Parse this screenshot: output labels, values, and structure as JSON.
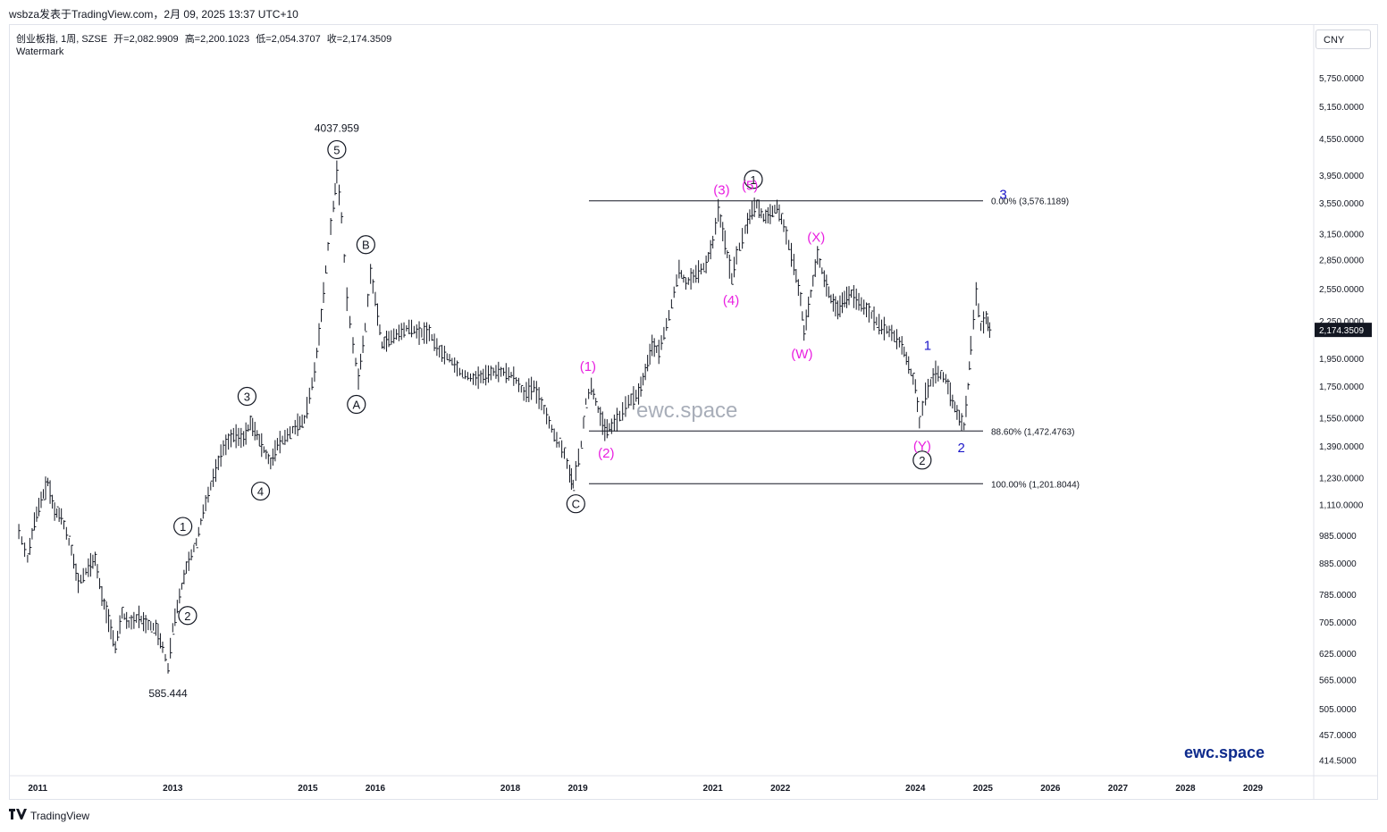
{
  "header": {
    "caption": "wsbza发表于TradingView.com，2月 09, 2025 13:37 UTC+10"
  },
  "legend": {
    "symbol": "创业板指, 1周, SZSE",
    "open": "开=2,082.9909",
    "high": "高=2,200.1023",
    "low": "低=2,054.3707",
    "close": "收=2,174.3509",
    "watermark": "Watermark"
  },
  "currency": "CNY",
  "footer": {
    "brand": "TradingView",
    "site": "ewc.space"
  },
  "center_watermark": "ewc.space",
  "colors": {
    "price_bar": "#131722",
    "magenta": "#e91ee0",
    "blue": "#1c17c9",
    "last_price_bg": "#131722",
    "site_text": "#0d2a8c"
  },
  "chart_data": {
    "type": "line",
    "title": "",
    "scale": "log",
    "ylim": [
      390,
      6350
    ],
    "xlim": [
      2010.6,
      2029.9
    ],
    "last_price": "2,174.3509",
    "y_ticks": [
      "5,750.0000",
      "5,150.0000",
      "4,550.0000",
      "3,950.0000",
      "3,550.0000",
      "3,150.0000",
      "2,850.0000",
      "2,550.0000",
      "2,250.0000",
      "1,950.0000",
      "1,750.0000",
      "1,550.0000",
      "1,390.0000",
      "1,230.0000",
      "1,110.0000",
      "985.0000",
      "885.0000",
      "785.0000",
      "705.0000",
      "625.0000",
      "565.0000",
      "505.0000",
      "457.0000",
      "414.5000"
    ],
    "x_ticks": [
      {
        "label": "2011",
        "x": 2011.0
      },
      {
        "label": "2013",
        "x": 2013.0
      },
      {
        "label": "2015",
        "x": 2015.0
      },
      {
        "label": "2016",
        "x": 2016.0
      },
      {
        "label": "2018",
        "x": 2018.0
      },
      {
        "label": "2019",
        "x": 2019.0
      },
      {
        "label": "2021",
        "x": 2021.0
      },
      {
        "label": "2022",
        "x": 2022.0
      },
      {
        "label": "2024",
        "x": 2024.0
      },
      {
        "label": "2025",
        "x": 2025.0
      },
      {
        "label": "2026",
        "x": 2026.0
      },
      {
        "label": "2027",
        "x": 2027.0
      },
      {
        "label": "2028",
        "x": 2028.0
      },
      {
        "label": "2029",
        "x": 2029.0
      }
    ],
    "series": [
      {
        "points": [
          [
            2010.72,
            1000
          ],
          [
            2010.85,
            900
          ],
          [
            2010.95,
            1040
          ],
          [
            2011.05,
            1130
          ],
          [
            2011.15,
            1210
          ],
          [
            2011.25,
            1080
          ],
          [
            2011.35,
            1060
          ],
          [
            2011.5,
            930
          ],
          [
            2011.6,
            820
          ],
          [
            2011.75,
            870
          ],
          [
            2011.85,
            900
          ],
          [
            2011.95,
            780
          ],
          [
            2012.05,
            710
          ],
          [
            2012.15,
            640
          ],
          [
            2012.25,
            730
          ],
          [
            2012.35,
            700
          ],
          [
            2012.5,
            720
          ],
          [
            2012.6,
            700
          ],
          [
            2012.75,
            690
          ],
          [
            2012.85,
            640
          ],
          [
            2012.93,
            590
          ],
          [
            2013.0,
            690
          ],
          [
            2013.1,
            780
          ],
          [
            2013.2,
            870
          ],
          [
            2013.35,
            960
          ],
          [
            2013.45,
            1080
          ],
          [
            2013.6,
            1230
          ],
          [
            2013.75,
            1380
          ],
          [
            2013.9,
            1450
          ],
          [
            2014.05,
            1430
          ],
          [
            2014.15,
            1520
          ],
          [
            2014.25,
            1450
          ],
          [
            2014.35,
            1370
          ],
          [
            2014.45,
            1300
          ],
          [
            2014.55,
            1400
          ],
          [
            2014.7,
            1450
          ],
          [
            2014.85,
            1510
          ],
          [
            2014.95,
            1540
          ],
          [
            2015.1,
            1850
          ],
          [
            2015.2,
            2300
          ],
          [
            2015.3,
            3000
          ],
          [
            2015.38,
            3500
          ],
          [
            2015.43,
            4000
          ],
          [
            2015.5,
            3350
          ],
          [
            2015.58,
            2450
          ],
          [
            2015.67,
            2050
          ],
          [
            2015.75,
            1800
          ],
          [
            2015.85,
            2200
          ],
          [
            2015.93,
            2700
          ],
          [
            2016.0,
            2450
          ],
          [
            2016.1,
            2050
          ],
          [
            2016.2,
            2100
          ],
          [
            2016.35,
            2150
          ],
          [
            2016.5,
            2200
          ],
          [
            2016.65,
            2150
          ],
          [
            2016.8,
            2150
          ],
          [
            2016.95,
            2000
          ],
          [
            2017.1,
            1950
          ],
          [
            2017.25,
            1850
          ],
          [
            2017.45,
            1800
          ],
          [
            2017.6,
            1820
          ],
          [
            2017.75,
            1850
          ],
          [
            2017.9,
            1850
          ],
          [
            2018.05,
            1820
          ],
          [
            2018.2,
            1700
          ],
          [
            2018.35,
            1750
          ],
          [
            2018.5,
            1600
          ],
          [
            2018.65,
            1450
          ],
          [
            2018.8,
            1350
          ],
          [
            2018.88,
            1250
          ],
          [
            2018.93,
            1200
          ],
          [
            2019.05,
            1400
          ],
          [
            2019.12,
            1650
          ],
          [
            2019.2,
            1750
          ],
          [
            2019.3,
            1600
          ],
          [
            2019.4,
            1480
          ],
          [
            2019.5,
            1500
          ],
          [
            2019.62,
            1560
          ],
          [
            2019.75,
            1650
          ],
          [
            2019.9,
            1700
          ],
          [
            2020.0,
            1850
          ],
          [
            2020.1,
            2050
          ],
          [
            2020.2,
            2000
          ],
          [
            2020.35,
            2300
          ],
          [
            2020.5,
            2750
          ],
          [
            2020.6,
            2600
          ],
          [
            2020.75,
            2700
          ],
          [
            2020.9,
            2800
          ],
          [
            2021.0,
            3050
          ],
          [
            2021.08,
            3450
          ],
          [
            2021.18,
            3050
          ],
          [
            2021.28,
            2650
          ],
          [
            2021.35,
            2900
          ],
          [
            2021.48,
            3200
          ],
          [
            2021.58,
            3450
          ],
          [
            2021.65,
            3530
          ],
          [
            2021.75,
            3350
          ],
          [
            2021.85,
            3400
          ],
          [
            2021.95,
            3500
          ],
          [
            2022.05,
            3250
          ],
          [
            2022.2,
            2800
          ],
          [
            2022.3,
            2450
          ],
          [
            2022.35,
            2150
          ],
          [
            2022.45,
            2500
          ],
          [
            2022.55,
            2900
          ],
          [
            2022.65,
            2650
          ],
          [
            2022.75,
            2450
          ],
          [
            2022.85,
            2350
          ],
          [
            2022.95,
            2450
          ],
          [
            2023.05,
            2500
          ],
          [
            2023.2,
            2400
          ],
          [
            2023.35,
            2300
          ],
          [
            2023.5,
            2200
          ],
          [
            2023.65,
            2150
          ],
          [
            2023.8,
            2050
          ],
          [
            2023.9,
            1900
          ],
          [
            2024.0,
            1750
          ],
          [
            2024.06,
            1520
          ],
          [
            2024.15,
            1700
          ],
          [
            2024.3,
            1850
          ],
          [
            2024.45,
            1800
          ],
          [
            2024.55,
            1650
          ],
          [
            2024.65,
            1550
          ],
          [
            2024.72,
            1500
          ],
          [
            2024.78,
            1750
          ],
          [
            2024.82,
            2050
          ],
          [
            2024.9,
            2500
          ],
          [
            2024.97,
            2200
          ],
          [
            2025.05,
            2280
          ],
          [
            2025.1,
            2174
          ]
        ]
      }
    ],
    "fib_levels": [
      {
        "label": "0.00% (3,576.1189)",
        "value": 3576.1189
      },
      {
        "label": "88.60% (1,472.4763)",
        "value": 1472.4763
      },
      {
        "label": "100.00% (1,201.8044)",
        "value": 1201.8044
      }
    ],
    "annotations": {
      "prices": [
        {
          "text": "4037.959",
          "x": 2015.43,
          "y": 4037.959
        },
        {
          "text": "585.444",
          "x": 2012.93,
          "y": 585.444
        }
      ],
      "circled": [
        {
          "text": "1",
          "x": 2013.15,
          "y": 945,
          "dir": "up"
        },
        {
          "text": "2",
          "x": 2013.22,
          "y": 780,
          "dir": "down"
        },
        {
          "text": "3",
          "x": 2014.1,
          "y": 1560,
          "dir": "up"
        },
        {
          "text": "4",
          "x": 2014.3,
          "y": 1260,
          "dir": "down"
        },
        {
          "text": "5",
          "x": 2015.43,
          "y": 4037.959,
          "dir": "up"
        },
        {
          "text": "A",
          "x": 2015.72,
          "y": 1760,
          "dir": "down"
        },
        {
          "text": "B",
          "x": 2015.86,
          "y": 2800,
          "dir": "up"
        },
        {
          "text": "C",
          "x": 2018.97,
          "y": 1200,
          "dir": "down"
        },
        {
          "text": "1",
          "x": 2021.6,
          "y": 3600,
          "dir": "up"
        },
        {
          "text": "2",
          "x": 2024.1,
          "y": 1420,
          "dir": "down"
        }
      ],
      "magenta": [
        {
          "text": "(1)",
          "x": 2019.15,
          "y": 1750,
          "dir": "up"
        },
        {
          "text": "(2)",
          "x": 2019.42,
          "y": 1460,
          "dir": "down"
        },
        {
          "text": "(3)",
          "x": 2021.13,
          "y": 3460,
          "dir": "up"
        },
        {
          "text": "(5)",
          "x": 2021.55,
          "y": 3520,
          "dir": "up"
        },
        {
          "text": "(4)",
          "x": 2021.27,
          "y": 2630,
          "dir": "down"
        },
        {
          "text": "(X)",
          "x": 2022.53,
          "y": 2880,
          "dir": "up"
        },
        {
          "text": "(W)",
          "x": 2022.32,
          "y": 2140,
          "dir": "down"
        },
        {
          "text": "(Y)",
          "x": 2024.1,
          "y": 1500,
          "dir": "down"
        }
      ],
      "blue": [
        {
          "text": "1",
          "x": 2024.18,
          "y": 1900,
          "dir": "up"
        },
        {
          "text": "2",
          "x": 2024.68,
          "y": 1490,
          "dir": "down"
        },
        {
          "text": "3",
          "x": 2025.3,
          "y": 3400,
          "dir": "up"
        }
      ]
    }
  }
}
